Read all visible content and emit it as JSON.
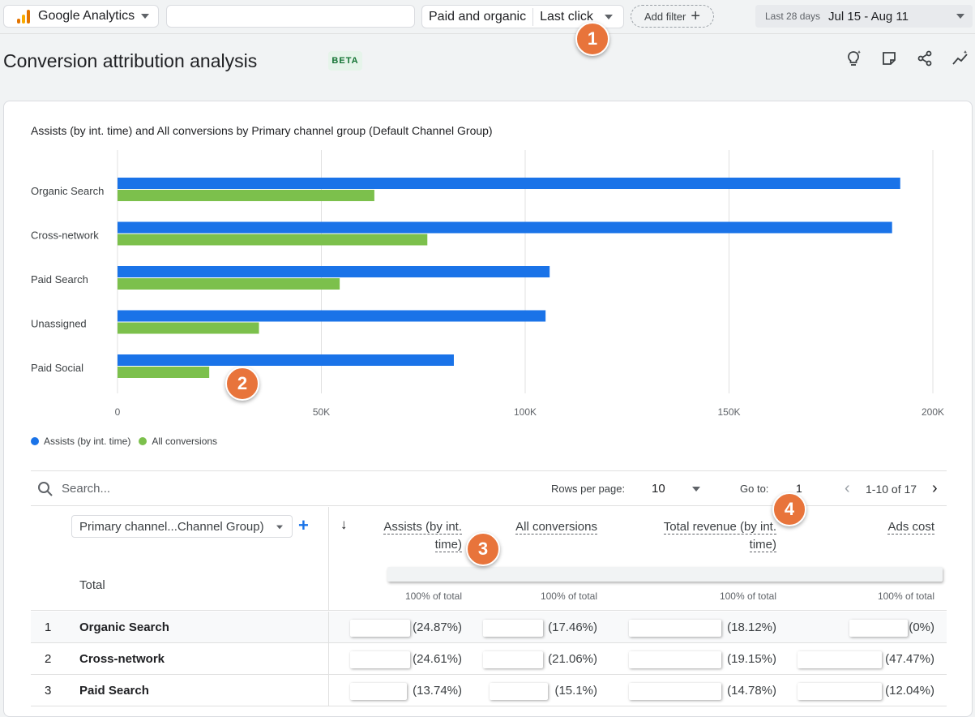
{
  "topbar": {
    "brand": "Google Analytics",
    "attribution_scope": "Paid and organic",
    "attribution_model": "Last click",
    "add_filter": "Add filter",
    "date_label": "Last 28 days",
    "date_range": "Jul 15 - Aug 11"
  },
  "page": {
    "title": "Conversion attribution analysis",
    "badge": "BETA"
  },
  "markers": [
    "1",
    "2",
    "3",
    "4"
  ],
  "chart_data": {
    "type": "bar",
    "orientation": "horizontal",
    "title": "Assists (by int. time) and All conversions by Primary channel group (Default Channel Group)",
    "categories": [
      "Organic Search",
      "Cross-network",
      "Paid Search",
      "Unassigned",
      "Paid Social"
    ],
    "series": [
      {
        "name": "Assists (by int. time)",
        "color": "#1a73e8",
        "values": [
          192000,
          190000,
          106000,
          105000,
          82500
        ]
      },
      {
        "name": "All conversions",
        "color": "#7cc04c",
        "values": [
          63000,
          76000,
          54500,
          34700,
          22500
        ]
      }
    ],
    "xlim": [
      0,
      200000
    ],
    "xticks": [
      "0",
      "50K",
      "100K",
      "150K",
      "200K"
    ],
    "xtick_values": [
      0,
      50000,
      100000,
      150000,
      200000
    ],
    "grid": true,
    "legend": "bottom-left"
  },
  "table": {
    "search_placeholder": "Search...",
    "rows_per_page_label": "Rows per page:",
    "rows_per_page": "10",
    "goto_label": "Go to:",
    "goto_value": "1",
    "page_range": "1-10 of 17",
    "dimension": "Primary channel...Channel Group)",
    "total_label": "Total",
    "columns": [
      {
        "l1": "Assists (by int.",
        "l2": "time)",
        "total": "100% of total"
      },
      {
        "l1": "All conversions",
        "l2": "",
        "total": "100% of total"
      },
      {
        "l1": "Total revenue (by int.",
        "l2": "time)",
        "total": "100% of total"
      },
      {
        "l1": "Ads cost",
        "l2": "",
        "total": "100% of total"
      }
    ],
    "rows": [
      {
        "idx": "1",
        "channel": "Organic Search",
        "cells": [
          "(24.87%)",
          "(17.46%)",
          "(18.12%)",
          "(0%)"
        ]
      },
      {
        "idx": "2",
        "channel": "Cross-network",
        "cells": [
          "(24.61%)",
          "(21.06%)",
          "(19.15%)",
          "(47.47%)"
        ]
      },
      {
        "idx": "3",
        "channel": "Paid Search",
        "cells": [
          "(13.74%)",
          "(15.1%)",
          "(14.78%)",
          "(12.04%)"
        ]
      }
    ]
  },
  "colors": {
    "assists": "#1a73e8",
    "conversions": "#7cc04c",
    "marker": "#e8743b",
    "beta_bg": "#e6f4ea",
    "beta_text": "#137333"
  }
}
